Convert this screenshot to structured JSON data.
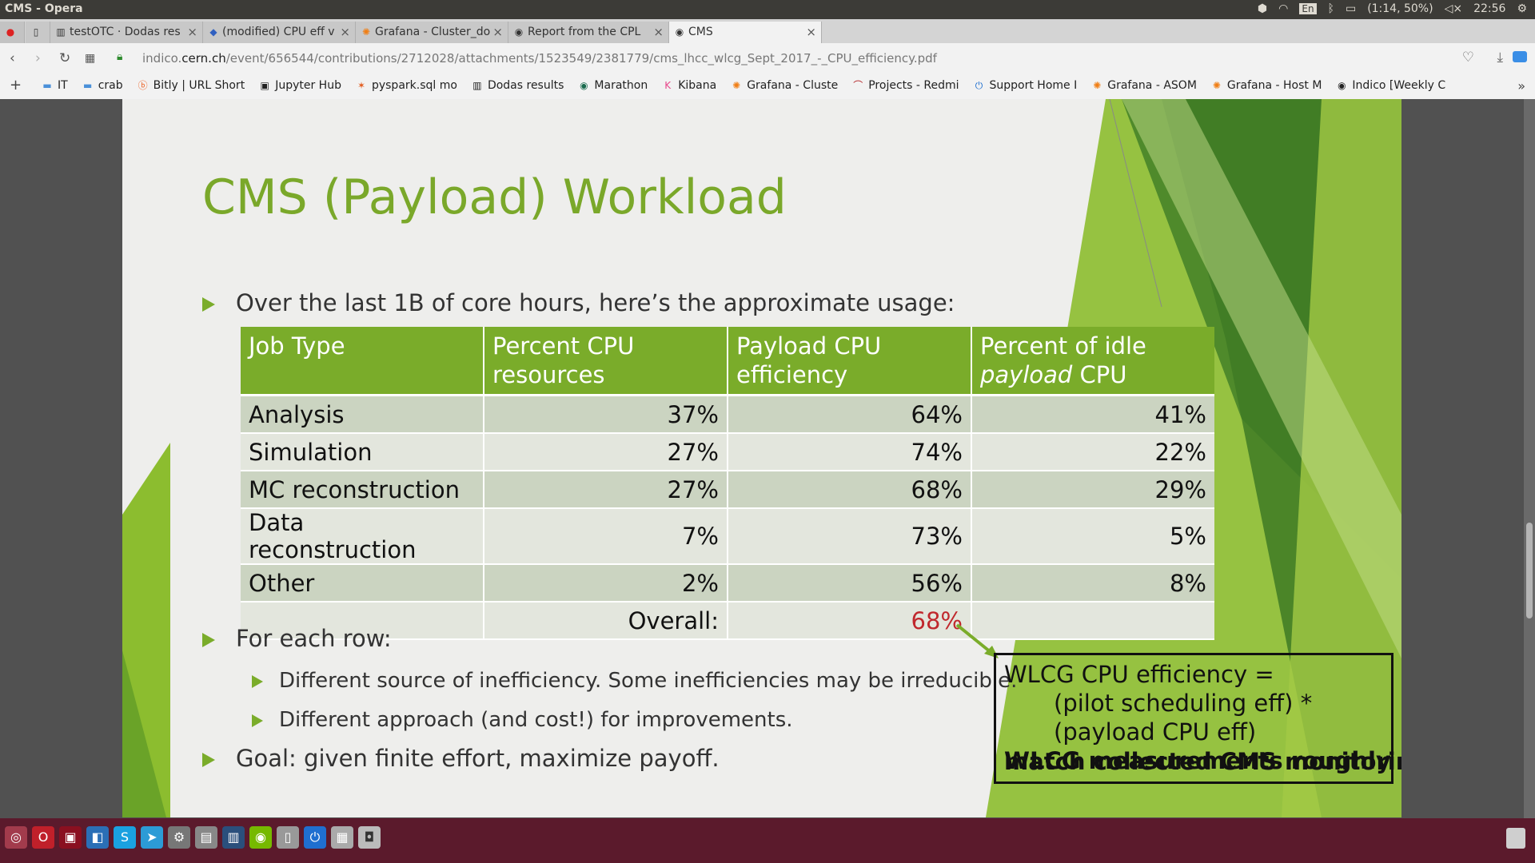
{
  "os": {
    "window_title": "CMS - Opera",
    "lang": "En",
    "battery": "(1:14, 50%)",
    "clock": "22:56"
  },
  "tabs": [
    {
      "label": "testOTC · Dodas res",
      "icon": "doc-icon"
    },
    {
      "label": "(modified) CPU eff v",
      "icon": "drive-icon"
    },
    {
      "label": "Grafana - Cluster_do",
      "icon": "grafana-icon"
    },
    {
      "label": "Report from the CPL",
      "icon": "indico-icon"
    },
    {
      "label": "CMS",
      "icon": "indico-icon"
    }
  ],
  "address": {
    "url_prefix": "indico.",
    "url_domain": "cern.ch",
    "url_path": "/event/656544/contributions/2712028/attachments/1523549/2381779/cms_lhcc_wlcg_Sept_2017_-_CPU_efficiency.pdf"
  },
  "bookmarks": [
    {
      "label": "IT",
      "icon": "folder-icon"
    },
    {
      "label": "crab",
      "icon": "folder-icon"
    },
    {
      "label": "Bitly | URL Short",
      "icon": "bitly-icon"
    },
    {
      "label": "Jupyter Hub",
      "icon": "jupyter-icon"
    },
    {
      "label": "pyspark.sql mo",
      "icon": "star-icon"
    },
    {
      "label": "Dodas results",
      "icon": "book-icon"
    },
    {
      "label": "Marathon",
      "icon": "marathon-icon"
    },
    {
      "label": "Kibana",
      "icon": "kibana-icon"
    },
    {
      "label": "Grafana - Cluste",
      "icon": "grafana-icon"
    },
    {
      "label": "Projects - Redmi",
      "icon": "redmine-icon"
    },
    {
      "label": "Support Home I",
      "icon": "support-icon"
    },
    {
      "label": "Grafana - ASOM",
      "icon": "grafana-icon"
    },
    {
      "label": "Grafana - Host M",
      "icon": "grafana-icon"
    },
    {
      "label": "Indico [Weekly C",
      "icon": "indico-icon"
    }
  ],
  "slide": {
    "title": "CMS (Payload) Workload",
    "bullet1": "Over the last 1B of core hours, here’s the approximate usage:",
    "table": {
      "headers": [
        "Job Type",
        "Percent CPU resources",
        "Payload CPU efficiency",
        "Percent of idle",
        "payload",
        " CPU"
      ],
      "rows": [
        [
          "Analysis",
          "37%",
          "64%",
          "41%"
        ],
        [
          "Simulation",
          "27%",
          "74%",
          "22%"
        ],
        [
          "MC reconstruction",
          "27%",
          "68%",
          "29%"
        ],
        [
          "Data reconstruction",
          "7%",
          "73%",
          "5%"
        ],
        [
          "Other",
          "2%",
          "56%",
          "8%"
        ]
      ],
      "overall_label": "Overall:",
      "overall_value": "68%"
    },
    "bullet2": "For each row:",
    "sub1": "Different source of inefficiency.  Some inefficiencies may be irreducible.",
    "sub2": "Different approach (and cost!) for improvements.",
    "bullet3": "Goal: given finite effort, maximize payoff.",
    "callout": {
      "line1": "WLCG CPU efficiency =",
      "line2": "(pilot scheduling eff) *",
      "line3": "(payload CPU eff)",
      "line4": "WLCG measurements roughly",
      "line5": "match collected CMS monitoring!"
    }
  },
  "colors": {
    "accent_green": "#7aac2a",
    "title_green": "#7aa82a",
    "overall_red": "#c0282d",
    "taskbar": "#5b1a2c"
  }
}
